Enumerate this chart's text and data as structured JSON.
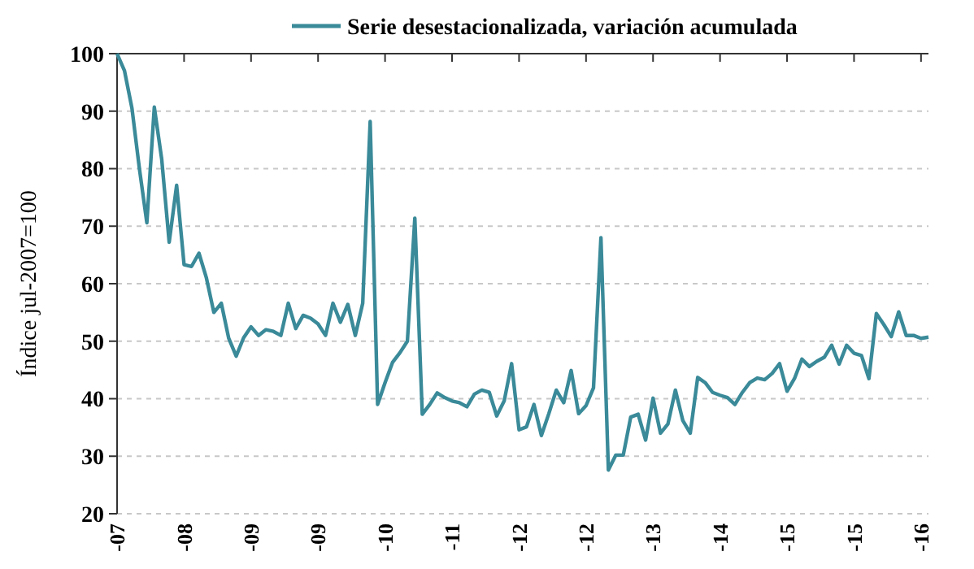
{
  "chart_data": {
    "type": "line",
    "ylabel": "Índice jul-2007=100",
    "legend": "top",
    "grid": "y",
    "line_style": "solid",
    "marker": "none",
    "categories": [
      "-07",
      null,
      null,
      null,
      null,
      null,
      null,
      null,
      null,
      "-08",
      null,
      null,
      null,
      null,
      null,
      null,
      null,
      null,
      "-09",
      null,
      null,
      null,
      null,
      null,
      null,
      null,
      null,
      "-09",
      null,
      null,
      null,
      null,
      null,
      null,
      null,
      null,
      "-10",
      null,
      null,
      null,
      null,
      null,
      null,
      null,
      null,
      "-11",
      null,
      null,
      null,
      null,
      null,
      null,
      null,
      null,
      "-12",
      null,
      null,
      null,
      null,
      null,
      null,
      null,
      null,
      "-12",
      null,
      null,
      null,
      null,
      null,
      null,
      null,
      null,
      "-13",
      null,
      null,
      null,
      null,
      null,
      null,
      null,
      null,
      "-14",
      null,
      null,
      null,
      null,
      null,
      null,
      null,
      null,
      "-15",
      null,
      null,
      null,
      null,
      null,
      null,
      null,
      null,
      "-15",
      null,
      null,
      null,
      null,
      null,
      null,
      null,
      null,
      "-16",
      null
    ],
    "ylim": [
      20,
      100
    ],
    "yticks": [
      20,
      30,
      40,
      50,
      60,
      70,
      80,
      90,
      100
    ],
    "series": [
      {
        "name": "Serie desestacionalizada, variación acumulada",
        "color": "#3a8a99",
        "values": [
          100,
          97,
          90.5,
          80,
          70.6,
          90.7,
          81.6,
          67.2,
          77.1,
          63.3,
          63,
          65.3,
          61,
          55,
          56.6,
          50.5,
          47.4,
          50.6,
          52.5,
          51,
          52,
          51.7,
          51,
          56.6,
          52.2,
          54.5,
          54,
          53,
          51,
          56.6,
          53.3,
          56.4,
          51,
          56.6,
          88.2,
          39,
          42.8,
          46.3,
          48,
          50,
          71.4,
          37.3,
          39,
          41,
          40.2,
          39.6,
          39.3,
          38.6,
          40.8,
          41.5,
          41.1,
          37,
          39.6,
          46.1,
          34.6,
          35.1,
          39,
          33.6,
          37.4,
          41.5,
          39.3,
          44.9,
          37.4,
          38.8,
          41.9,
          68,
          27.6,
          30.2,
          30.2,
          36.8,
          37.3,
          32.8,
          40.1,
          34,
          35.6,
          41.5,
          36.2,
          34,
          43.7,
          42.8,
          41.1,
          40.6,
          40.2,
          39,
          41.1,
          42.8,
          43.6,
          43.3,
          44.4,
          46.1,
          41.3,
          43.5,
          46.9,
          45.6,
          46.5,
          47.2,
          49.3,
          46,
          49.3,
          47.9,
          47.5,
          43.5,
          54.8,
          52.9,
          50.8,
          55.1,
          51,
          51,
          50.5,
          50.7
        ]
      }
    ]
  }
}
